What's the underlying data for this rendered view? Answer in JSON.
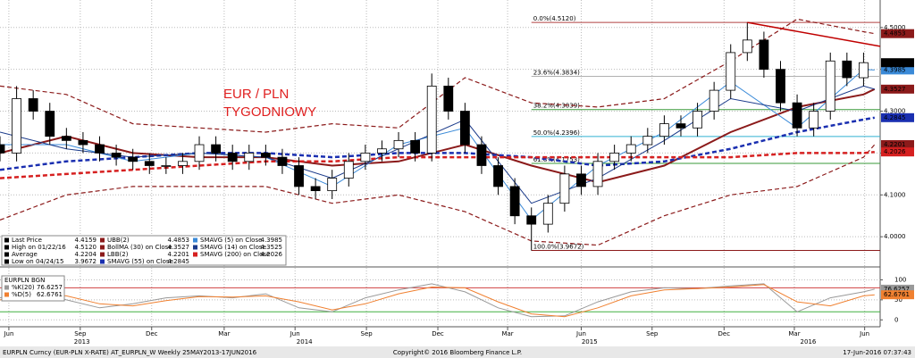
{
  "chart_data": [
    {
      "type": "candlestick",
      "annotation_lines": [
        "EUR / PLN",
        "TYGODNIOWY"
      ],
      "xlim": [
        0,
        159
      ],
      "ylim": [
        3.93,
        4.555
      ],
      "yticks": [
        {
          "value": 4.0,
          "label": "4.0000"
        },
        {
          "value": 4.1,
          "label": "4.1000"
        },
        {
          "value": 4.2,
          "label": "4.2000"
        },
        {
          "value": 4.3,
          "label": "4.3000"
        },
        {
          "value": 4.4,
          "label": "4.4000"
        },
        {
          "value": 4.5,
          "label": "4.5000"
        }
      ],
      "grid": true,
      "x": [
        0,
        3,
        6,
        9,
        12,
        15,
        18,
        21,
        24,
        27,
        30,
        33,
        36,
        39,
        42,
        45,
        48,
        51,
        54,
        57,
        60,
        63,
        66,
        69,
        72,
        75,
        78,
        81,
        84,
        87,
        90,
        93,
        96,
        99,
        102,
        105,
        108,
        111,
        114,
        117,
        120,
        123,
        126,
        129,
        132,
        135,
        138,
        141,
        144,
        147,
        150,
        153,
        156
      ],
      "open": [
        4.22,
        4.2,
        4.33,
        4.3,
        4.24,
        4.23,
        4.22,
        4.2,
        4.19,
        4.18,
        4.17,
        4.17,
        4.18,
        4.22,
        4.2,
        4.18,
        4.2,
        4.19,
        4.17,
        4.12,
        4.11,
        4.14,
        4.18,
        4.2,
        4.21,
        4.23,
        4.2,
        4.36,
        4.3,
        4.22,
        4.17,
        4.12,
        4.05,
        4.03,
        4.08,
        4.15,
        4.12,
        4.18,
        4.2,
        4.22,
        4.24,
        4.27,
        4.26,
        4.3,
        4.35,
        4.44,
        4.47,
        4.4,
        4.32,
        4.26,
        4.3,
        4.42,
        4.38
      ],
      "high": [
        4.24,
        4.36,
        4.35,
        4.32,
        4.26,
        4.25,
        4.24,
        4.22,
        4.21,
        4.2,
        4.19,
        4.2,
        4.24,
        4.24,
        4.22,
        4.22,
        4.22,
        4.21,
        4.19,
        4.14,
        4.16,
        4.2,
        4.22,
        4.23,
        4.25,
        4.25,
        4.39,
        4.38,
        4.32,
        4.24,
        4.19,
        4.14,
        4.07,
        4.1,
        4.17,
        4.17,
        4.2,
        4.22,
        4.24,
        4.26,
        4.29,
        4.29,
        4.32,
        4.37,
        4.46,
        4.512,
        4.49,
        4.42,
        4.34,
        4.32,
        4.44,
        4.44,
        4.44
      ],
      "low": [
        4.18,
        4.18,
        4.28,
        4.22,
        4.21,
        4.2,
        4.18,
        4.17,
        4.16,
        4.15,
        4.15,
        4.15,
        4.16,
        4.18,
        4.16,
        4.16,
        4.17,
        4.15,
        4.1,
        4.09,
        4.09,
        4.12,
        4.16,
        4.18,
        4.19,
        4.18,
        4.18,
        4.28,
        4.2,
        4.15,
        4.1,
        4.03,
        3.9672,
        4.01,
        4.06,
        4.1,
        4.1,
        4.16,
        4.18,
        4.2,
        4.22,
        4.24,
        4.24,
        4.28,
        4.33,
        4.42,
        4.38,
        4.3,
        4.24,
        4.24,
        4.28,
        4.36,
        4.36
      ],
      "close": [
        4.2,
        4.33,
        4.3,
        4.24,
        4.23,
        4.22,
        4.2,
        4.19,
        4.18,
        4.17,
        4.17,
        4.18,
        4.22,
        4.2,
        4.18,
        4.2,
        4.19,
        4.17,
        4.12,
        4.11,
        4.14,
        4.18,
        4.2,
        4.21,
        4.23,
        4.2,
        4.36,
        4.3,
        4.22,
        4.17,
        4.12,
        4.05,
        4.03,
        4.08,
        4.15,
        4.12,
        4.18,
        4.2,
        4.22,
        4.24,
        4.27,
        4.26,
        4.3,
        4.35,
        4.44,
        4.47,
        4.4,
        4.32,
        4.26,
        4.3,
        4.42,
        4.38,
        4.4159
      ],
      "stats": [
        {
          "label": "Last Price",
          "value": "4.4159"
        },
        {
          "label": "High on 01/22/16",
          "value": "4.5120"
        },
        {
          "label": "Average",
          "value": "4.2204"
        },
        {
          "label": "Low on 04/24/15",
          "value": "3.9672"
        }
      ],
      "series": [
        {
          "name": "UBB(2)",
          "color": "#8b1a1a",
          "dash": true,
          "width": 1.2,
          "tag": true,
          "x": [
            0,
            12,
            24,
            36,
            48,
            60,
            72,
            84,
            96,
            108,
            120,
            132,
            144,
            156,
            158
          ],
          "values": [
            4.36,
            4.34,
            4.27,
            4.26,
            4.25,
            4.27,
            4.26,
            4.38,
            4.32,
            4.31,
            4.33,
            4.42,
            4.52,
            4.49,
            4.4853
          ]
        },
        {
          "name": "BollMA (30) on Close",
          "color": "#8b1a1a",
          "dash": false,
          "width": 2,
          "tag": true,
          "x": [
            0,
            12,
            24,
            36,
            48,
            60,
            72,
            84,
            96,
            108,
            120,
            132,
            144,
            156,
            158
          ],
          "values": [
            4.2,
            4.24,
            4.2,
            4.19,
            4.19,
            4.17,
            4.18,
            4.22,
            4.17,
            4.13,
            4.17,
            4.25,
            4.31,
            4.34,
            4.3527
          ]
        },
        {
          "name": "LBB(2)",
          "color": "#8b1a1a",
          "dash": true,
          "width": 1.2,
          "tag": true,
          "x": [
            0,
            12,
            24,
            36,
            48,
            60,
            72,
            84,
            96,
            108,
            120,
            132,
            144,
            156,
            158
          ],
          "values": [
            4.04,
            4.1,
            4.12,
            4.12,
            4.12,
            4.08,
            4.1,
            4.06,
            3.99,
            3.98,
            4.05,
            4.1,
            4.12,
            4.19,
            4.2201
          ]
        },
        {
          "name": "SMAVG (55) on Close",
          "color": "#1a2fb0",
          "dash": true,
          "width": 2.5,
          "tag": true,
          "x": [
            0,
            12,
            24,
            36,
            48,
            60,
            72,
            84,
            96,
            108,
            120,
            132,
            144,
            156,
            158
          ],
          "values": [
            4.16,
            4.18,
            4.19,
            4.2,
            4.2,
            4.19,
            4.2,
            4.2,
            4.19,
            4.17,
            4.18,
            4.21,
            4.25,
            4.28,
            4.2845
          ]
        },
        {
          "name": "SMAVG (5) on Close",
          "color": "#3a8ad8",
          "dash": false,
          "width": 1,
          "tag": true,
          "x": [
            0,
            12,
            24,
            36,
            48,
            60,
            72,
            84,
            96,
            108,
            120,
            132,
            144,
            156,
            158
          ],
          "values": [
            4.22,
            4.22,
            4.18,
            4.2,
            4.19,
            4.12,
            4.22,
            4.26,
            4.04,
            4.17,
            4.25,
            4.37,
            4.26,
            4.4,
            4.3985
          ]
        },
        {
          "name": "SMAVG (14) on Close",
          "color": "#1a3a8a",
          "dash": false,
          "width": 1,
          "tag": false,
          "x": [
            0,
            12,
            24,
            36,
            48,
            60,
            72,
            84,
            96,
            108,
            120,
            132,
            144,
            156,
            158
          ],
          "values": [
            4.25,
            4.21,
            4.19,
            4.2,
            4.19,
            4.14,
            4.21,
            4.28,
            4.08,
            4.14,
            4.23,
            4.33,
            4.3,
            4.36,
            4.3525
          ]
        },
        {
          "name": "SMAVG (200) on Close",
          "color": "#d62020",
          "dash": true,
          "width": 2.5,
          "tag": true,
          "x": [
            0,
            12,
            24,
            36,
            48,
            60,
            72,
            84,
            96,
            108,
            120,
            132,
            144,
            156,
            158
          ],
          "values": [
            4.14,
            4.15,
            4.16,
            4.17,
            4.18,
            4.18,
            4.19,
            4.19,
            4.19,
            4.19,
            4.19,
            4.19,
            4.2,
            4.2,
            4.2026
          ]
        }
      ],
      "fib_start": 96,
      "fib_levels": [
        {
          "label": "0.0%(4.5120)",
          "value": 4.512,
          "color": "#b04040"
        },
        {
          "label": "23.6%(4.3834)",
          "value": 4.3834,
          "color": "#b0b0b0"
        },
        {
          "label": "38.2%(4.3039)",
          "value": 4.3039,
          "color": "#3a9a3a"
        },
        {
          "label": "50.0%(4.2396)",
          "value": 4.2396,
          "color": "#30b0d0"
        },
        {
          "label": "61.8%(4.1753)",
          "value": 4.1753,
          "color": "#3a9a3a"
        },
        {
          "label": "100.0%(3.9672)",
          "value": 3.9672,
          "color": "#8b1a1a"
        }
      ],
      "trendline": {
        "color": "#c00000",
        "x": [
          135,
          159
        ],
        "values": [
          4.512,
          4.455
        ]
      }
    },
    {
      "type": "line",
      "legend_title": "EURPLN BGN",
      "xlim": [
        0,
        159
      ],
      "ylim": [
        -15,
        130
      ],
      "yticks": [
        0,
        50,
        100
      ],
      "ref_lines": [
        {
          "value": 80,
          "color": "#d04040"
        },
        {
          "value": 20,
          "color": "#40b040"
        }
      ],
      "xticks": [
        {
          "value": 1.6,
          "label": "Jun"
        },
        {
          "value": 14.5,
          "label": "Sep"
        },
        {
          "value": 27.4,
          "label": "Dec"
        },
        {
          "value": 40.5,
          "label": "Mar"
        },
        {
          "value": 53.3,
          "label": "Jun"
        },
        {
          "value": 66.2,
          "label": "Sep"
        },
        {
          "value": 79.1,
          "label": "Dec"
        },
        {
          "value": 91.7,
          "label": "Mar"
        },
        {
          "value": 105,
          "label": "Jun"
        },
        {
          "value": 117.8,
          "label": "Sep"
        },
        {
          "value": 130.8,
          "label": "Dec"
        },
        {
          "value": 143.5,
          "label": "Mar"
        },
        {
          "value": 156.2,
          "label": "Jun"
        }
      ],
      "year_labels": [
        {
          "value": 14.8,
          "label": "2013"
        },
        {
          "value": 55,
          "label": "2014"
        },
        {
          "value": 106.5,
          "label": "2015"
        },
        {
          "value": 146,
          "label": "2016"
        }
      ],
      "series": [
        {
          "name": "%K(20)",
          "color": "#999999",
          "x": [
            0,
            6,
            12,
            18,
            24,
            30,
            36,
            42,
            48,
            54,
            60,
            66,
            72,
            78,
            84,
            90,
            96,
            102,
            108,
            114,
            120,
            126,
            132,
            138,
            144,
            150,
            156,
            158
          ],
          "values": [
            55,
            75,
            50,
            30,
            40,
            55,
            60,
            55,
            65,
            30,
            20,
            55,
            75,
            90,
            70,
            30,
            8,
            10,
            45,
            70,
            80,
            78,
            85,
            90,
            20,
            55,
            70,
            76.6257
          ]
        },
        {
          "name": "%D(5)",
          "color": "#f08030",
          "x": [
            0,
            6,
            12,
            18,
            24,
            30,
            36,
            42,
            48,
            54,
            60,
            66,
            72,
            78,
            84,
            90,
            96,
            102,
            108,
            114,
            120,
            126,
            132,
            138,
            144,
            150,
            156,
            158
          ],
          "values": [
            50,
            65,
            60,
            40,
            35,
            48,
            58,
            57,
            60,
            45,
            25,
            40,
            65,
            82,
            80,
            45,
            15,
            8,
            30,
            60,
            75,
            78,
            82,
            88,
            45,
            35,
            60,
            62.6761
          ]
        }
      ]
    }
  ],
  "footer": {
    "left": "EURPLN Curncy (EUR-PLN X-RATE) AT_EURPLN_W  Weekly 25MAY2013-17JUN2016",
    "center": "Copyright© 2016 Bloomberg Finance L.P.",
    "right": "17-Jun-2016 07:37:43"
  }
}
